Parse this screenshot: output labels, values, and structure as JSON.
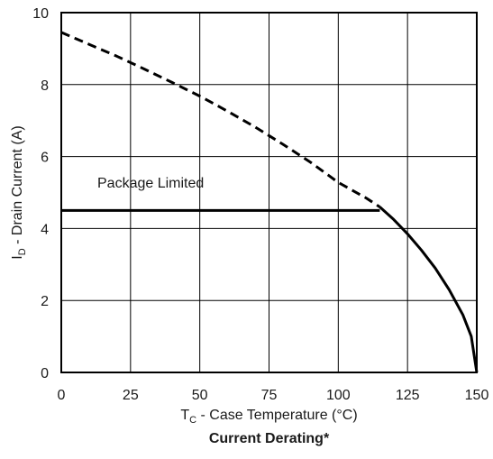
{
  "chart_data": {
    "type": "line",
    "title": "Current Derating*",
    "xlabel": {
      "main": "T",
      "sub": "C",
      "rest": " - Case Temperature (°C)"
    },
    "ylabel": {
      "main": "I",
      "sub": "D",
      "rest": " - Drain Current (A)"
    },
    "xlim": [
      0,
      150
    ],
    "ylim": [
      0,
      10
    ],
    "xticks": [
      "0",
      "25",
      "50",
      "75",
      "100",
      "125",
      "150"
    ],
    "yticks": [
      "0",
      "2",
      "4",
      "6",
      "8",
      "10"
    ],
    "grid": true,
    "annotations": [
      {
        "text": "Package Limited"
      }
    ],
    "series": [
      {
        "style": "dashed",
        "x": [
          0,
          10,
          20,
          30,
          40,
          50,
          60,
          70,
          80,
          90,
          100,
          110,
          115
        ],
        "y": [
          9.45,
          9.12,
          8.79,
          8.43,
          8.06,
          7.68,
          7.26,
          6.82,
          6.34,
          5.84,
          5.28,
          4.85,
          4.6
        ]
      },
      {
        "style": "solid",
        "x": [
          0,
          115
        ],
        "y": [
          4.5,
          4.5
        ]
      },
      {
        "style": "solid",
        "x": [
          115,
          120,
          125,
          130,
          135,
          140,
          145,
          148,
          150
        ],
        "y": [
          4.6,
          4.25,
          3.85,
          3.4,
          2.9,
          2.3,
          1.6,
          1.0,
          0.0
        ]
      }
    ]
  }
}
